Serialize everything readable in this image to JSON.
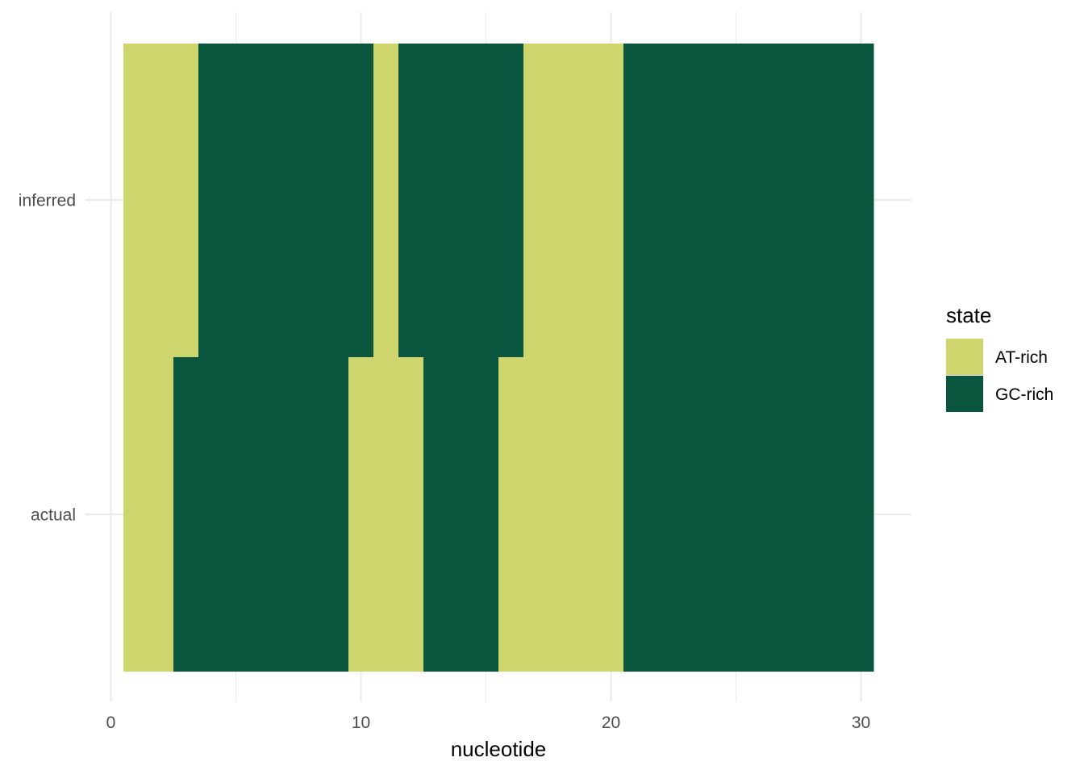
{
  "chart_data": {
    "type": "heatmap",
    "title": "",
    "xlabel": "nucleotide",
    "ylabel": "",
    "xlim": [
      0,
      31.5
    ],
    "x_ticks": [
      0,
      10,
      20,
      30
    ],
    "x_minor_ticks": [
      5,
      15,
      25
    ],
    "grid": true,
    "rows": [
      "actual",
      "inferred"
    ],
    "legend": {
      "title": "state",
      "placement": "right",
      "entries": [
        {
          "label": "AT-rich",
          "color": "#cfd56d"
        },
        {
          "label": "GC-rich",
          "color": "#09553d"
        }
      ]
    },
    "series": [
      {
        "row": "actual",
        "segments": [
          {
            "start": 1,
            "end": 2,
            "state": "AT-rich"
          },
          {
            "start": 3,
            "end": 9,
            "state": "GC-rich"
          },
          {
            "start": 10,
            "end": 12,
            "state": "AT-rich"
          },
          {
            "start": 13,
            "end": 15,
            "state": "GC-rich"
          },
          {
            "start": 16,
            "end": 20,
            "state": "AT-rich"
          },
          {
            "start": 21,
            "end": 30,
            "state": "GC-rich"
          }
        ]
      },
      {
        "row": "inferred",
        "segments": [
          {
            "start": 1,
            "end": 3,
            "state": "AT-rich"
          },
          {
            "start": 4,
            "end": 10,
            "state": "GC-rich"
          },
          {
            "start": 11,
            "end": 11,
            "state": "AT-rich"
          },
          {
            "start": 12,
            "end": 16,
            "state": "GC-rich"
          },
          {
            "start": 17,
            "end": 20,
            "state": "AT-rich"
          },
          {
            "start": 21,
            "end": 30,
            "state": "GC-rich"
          }
        ]
      }
    ]
  }
}
